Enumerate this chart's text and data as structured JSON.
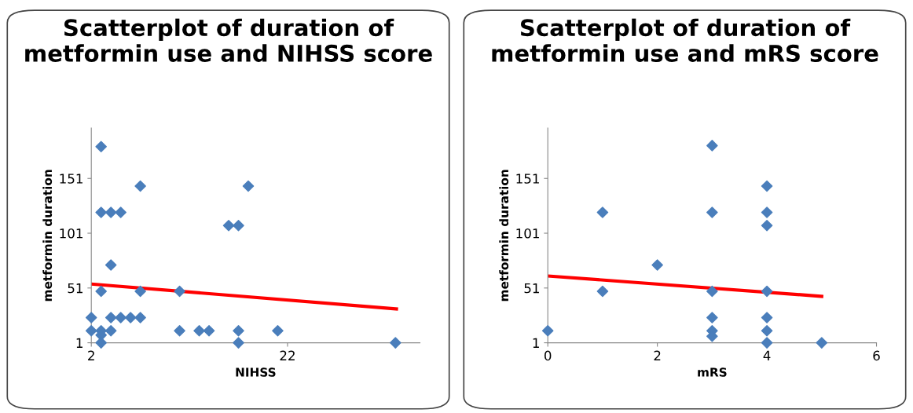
{
  "chart_data": [
    {
      "type": "scatter",
      "title": "Scatterplot of duration of metformin use and NIHSS score",
      "xlabel": "NIHSS",
      "ylabel": "metformin duration",
      "xlim": [
        2,
        35.5
      ],
      "xticks": [
        2,
        22
      ],
      "ylim": [
        1,
        197
      ],
      "yticks": [
        1,
        51,
        101,
        151
      ],
      "grid": false,
      "legend": false,
      "series": [
        {
          "marker": "diamond",
          "color": "#4a7ebb",
          "x": [
            3,
            3,
            4,
            5,
            7,
            18,
            16,
            17,
            4,
            3,
            7,
            11,
            2,
            4,
            5,
            6,
            7,
            2,
            3,
            4,
            3,
            3,
            11,
            13,
            14,
            17,
            17,
            21,
            33
          ],
          "values": [
            180,
            120,
            120,
            120,
            144,
            144,
            108,
            108,
            72,
            48,
            48,
            48,
            24,
            24,
            24,
            24,
            24,
            12,
            12,
            12,
            8,
            1,
            12,
            12,
            12,
            12,
            1,
            12,
            1
          ]
        },
        {
          "type": "line",
          "marker": "none",
          "line_style": "solid",
          "color": "#ff0000",
          "x": [
            2,
            33.1
          ],
          "values": [
            54.6,
            31.9
          ]
        }
      ]
    },
    {
      "type": "scatter",
      "title": "Scatterplot of duration of metformin use and mRS score",
      "xlabel": "mRS",
      "ylabel": "metformin duration",
      "xlim": [
        0,
        6
      ],
      "xticks": [
        0,
        2,
        4,
        6
      ],
      "ylim": [
        1,
        197
      ],
      "yticks": [
        1,
        51,
        101,
        151
      ],
      "grid": false,
      "legend": false,
      "series": [
        {
          "marker": "diamond",
          "color": "#4a7ebb",
          "x": [
            0,
            1,
            1,
            2,
            3,
            3,
            3,
            3,
            3,
            3,
            4,
            4,
            4,
            4,
            4,
            4,
            4,
            5
          ],
          "values": [
            12,
            120,
            48,
            72,
            181,
            120,
            48,
            24,
            12,
            7,
            144,
            120,
            108,
            48,
            24,
            12,
            1,
            1
          ]
        },
        {
          "type": "line",
          "marker": "none",
          "line_style": "solid",
          "color": "#ff0000",
          "x": [
            0,
            5
          ],
          "values": [
            62,
            43.4
          ]
        }
      ]
    }
  ]
}
